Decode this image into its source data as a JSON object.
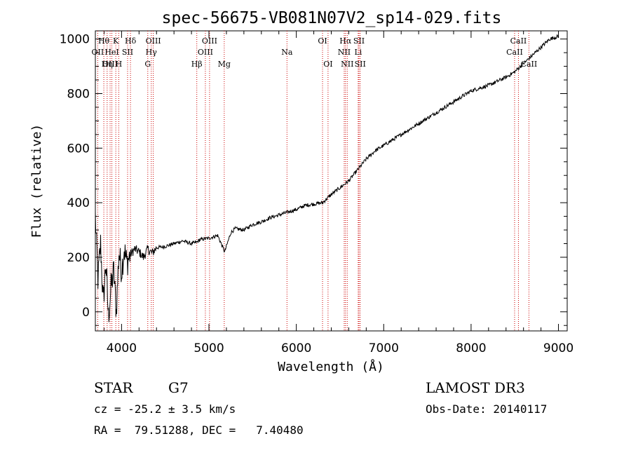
{
  "chart_data": {
    "type": "line",
    "title": "spec-56675-VB081N07V2_sp14-029.fits",
    "xlabel": "Wavelength (Å)",
    "ylabel": "Flux (relative)",
    "xlim": [
      3700,
      9100
    ],
    "ylim": [
      -70,
      1030
    ],
    "x_ticks": [
      4000,
      5000,
      6000,
      7000,
      8000,
      9000
    ],
    "x_tick_labels": [
      "4000",
      "5000",
      "6000",
      "7000",
      "8000",
      "9000"
    ],
    "y_ticks": [
      0,
      200,
      400,
      600,
      800,
      1000
    ],
    "y_tick_labels": [
      "0",
      "200",
      "400",
      "600",
      "800",
      "1000"
    ],
    "line_color": "#000000",
    "marker_color": "#cc0000",
    "series": [
      {
        "name": "spectrum",
        "x": [
          3700,
          3730,
          3760,
          3790,
          3820,
          3850,
          3880,
          3910,
          3940,
          3970,
          4000,
          4030,
          4060,
          4100,
          4150,
          4200,
          4250,
          4300,
          4350,
          4400,
          4500,
          4600,
          4700,
          4800,
          4860,
          4900,
          5000,
          5100,
          5180,
          5250,
          5300,
          5400,
          5500,
          5600,
          5700,
          5800,
          5900,
          6000,
          6100,
          6200,
          6300,
          6400,
          6500,
          6560,
          6600,
          6700,
          6800,
          6900,
          7000,
          7200,
          7400,
          7600,
          7800,
          8000,
          8200,
          8400,
          8500,
          8600,
          8700,
          8800,
          8900,
          9000
        ],
        "y": [
          350,
          120,
          250,
          30,
          180,
          -20,
          90,
          150,
          0,
          220,
          150,
          230,
          180,
          210,
          230,
          220,
          200,
          230,
          215,
          235,
          240,
          250,
          260,
          250,
          255,
          265,
          270,
          280,
          220,
          290,
          305,
          300,
          320,
          330,
          345,
          355,
          365,
          375,
          390,
          395,
          400,
          430,
          455,
          470,
          480,
          520,
          560,
          590,
          610,
          650,
          690,
          730,
          770,
          810,
          830,
          860,
          880,
          910,
          940,
          970,
          1000,
          1010
        ]
      }
    ],
    "spectral_lines": [
      {
        "label": "Hθ",
        "wavelength": 3797,
        "row": 1
      },
      {
        "label": "OII",
        "wavelength": 3727,
        "row": 2
      },
      {
        "label": "OIII",
        "wavelength": 3869,
        "row": 3
      },
      {
        "label": "HeI",
        "wavelength": 3889,
        "row": 2
      },
      {
        "label": "Hη",
        "wavelength": 3835,
        "row": 3
      },
      {
        "label": "K",
        "wavelength": 3934,
        "row": 1
      },
      {
        "label": "SII",
        "wavelength": 4069,
        "row": 2
      },
      {
        "label": "H",
        "wavelength": 3968,
        "row": 3
      },
      {
        "label": "Hδ",
        "wavelength": 4102,
        "row": 1
      },
      {
        "label": "OIII",
        "wavelength": 4363,
        "row": 1
      },
      {
        "label": "Hγ",
        "wavelength": 4340,
        "row": 2
      },
      {
        "label": "G",
        "wavelength": 4300,
        "row": 3
      },
      {
        "label": "Hβ",
        "wavelength": 4861,
        "row": 3
      },
      {
        "label": "OIII",
        "wavelength": 5007,
        "row": 1
      },
      {
        "label": "OIII",
        "wavelength": 4959,
        "row": 2
      },
      {
        "label": "Mg",
        "wavelength": 5175,
        "row": 3
      },
      {
        "label": "Na",
        "wavelength": 5893,
        "row": 2
      },
      {
        "label": "OI",
        "wavelength": 6300,
        "row": 1
      },
      {
        "label": "OI",
        "wavelength": 6363,
        "row": 3
      },
      {
        "label": "Hα",
        "wavelength": 6563,
        "row": 1
      },
      {
        "label": "NII",
        "wavelength": 6548,
        "row": 2
      },
      {
        "label": "NII",
        "wavelength": 6583,
        "row": 3
      },
      {
        "label": "SII",
        "wavelength": 6717,
        "row": 1
      },
      {
        "label": "Li",
        "wavelength": 6708,
        "row": 2
      },
      {
        "label": "SII",
        "wavelength": 6731,
        "row": 3
      },
      {
        "label": "CaII",
        "wavelength": 8542,
        "row": 1
      },
      {
        "label": "CaII",
        "wavelength": 8498,
        "row": 2
      },
      {
        "label": "CaII",
        "wavelength": 8662,
        "row": 3
      }
    ]
  },
  "info": {
    "object_class": "STAR",
    "subclass": "G7",
    "survey": "LAMOST DR3",
    "redshift_line": "cz = -25.2 ± 3.5 km/s",
    "obs_date_line": "Obs-Date: 20140117",
    "coords_line": "RA =  79.51288, DEC =   7.40480"
  }
}
